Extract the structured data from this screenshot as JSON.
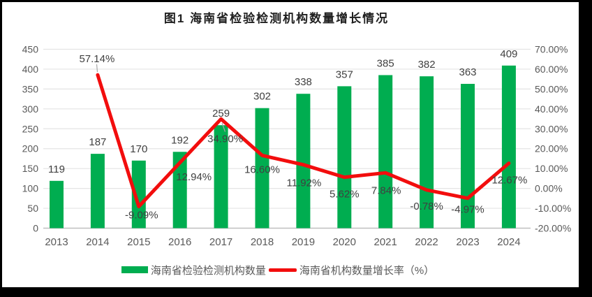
{
  "chart_data": {
    "type": "combo-bar-line",
    "title": "图1 海南省检验检测机构数量增长情况",
    "categories": [
      "2013",
      "2014",
      "2015",
      "2016",
      "2017",
      "2018",
      "2019",
      "2020",
      "2021",
      "2022",
      "2023",
      "2024"
    ],
    "series": [
      {
        "name": "海南省检验检测机构数量",
        "type": "bar",
        "color": "#00AD50",
        "values": [
          119,
          187,
          170,
          192,
          259,
          302,
          338,
          357,
          385,
          382,
          363,
          409
        ],
        "labels": [
          "119",
          "187",
          "170",
          "192",
          "259",
          "302",
          "338",
          "357",
          "385",
          "382",
          "363",
          "409"
        ]
      },
      {
        "name": "海南省机构数量增长率（%）",
        "type": "line",
        "color": "#F20D0D",
        "values": [
          null,
          57.14,
          -9.09,
          12.94,
          34.9,
          16.6,
          11.92,
          5.62,
          7.84,
          -0.78,
          -4.97,
          12.67
        ],
        "labels": [
          null,
          "57.14%",
          "-9.09%",
          "12.94%",
          "34.90%",
          "16.60%",
          "11.92%",
          "5.62%",
          "7.84%",
          "-0.78%",
          "-4.97%",
          "12.67%"
        ]
      }
    ],
    "left_axis": {
      "min": 0,
      "max": 450,
      "step": 50,
      "ticks": [
        "450",
        "400",
        "350",
        "300",
        "250",
        "200",
        "150",
        "100",
        "50",
        "0"
      ]
    },
    "right_axis": {
      "min": -20,
      "max": 70,
      "step": 10,
      "ticks": [
        "70.00%",
        "60.00%",
        "50.00%",
        "40.00%",
        "30.00%",
        "20.00%",
        "10.00%",
        "0.00%",
        "-10.00%",
        "-20.00%"
      ]
    },
    "grid": true,
    "legend_position": "bottom"
  },
  "colors": {
    "frame": "#000000",
    "canvas": "#ffffff",
    "gridline": "#E4E4E4",
    "axis_line": "#BFBFBF",
    "axis_text": "#595959",
    "data_label": "#404040",
    "leader_line": "#A6A6A6"
  }
}
